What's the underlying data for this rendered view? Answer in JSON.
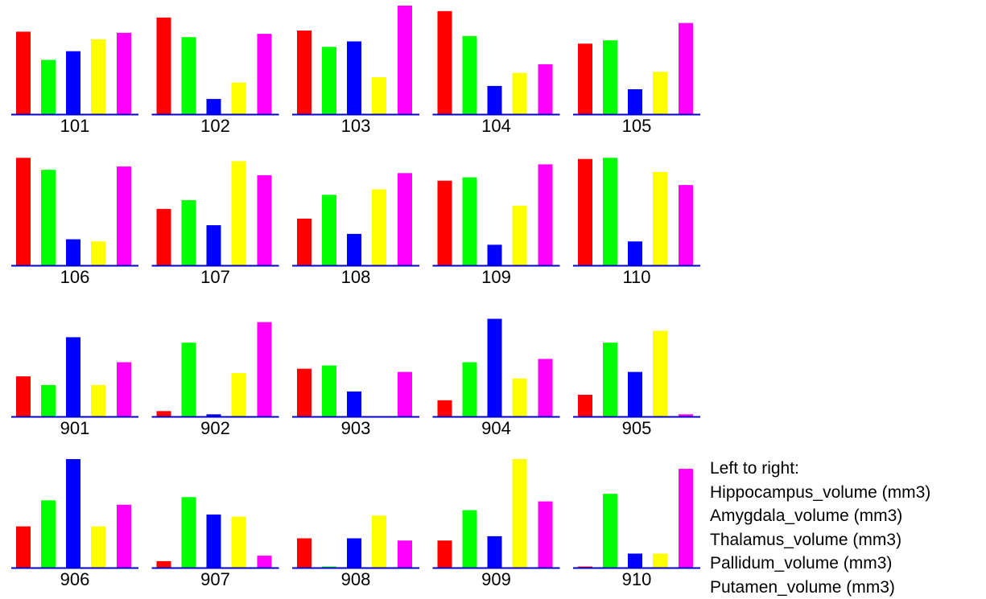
{
  "legend": {
    "heading": "Left to right:",
    "items": [
      "Hippocampus_volume (mm3)",
      "Amygdala_volume (mm3)",
      "Thalamus_volume (mm3)",
      "Pallidum_volume (mm3)",
      "Putamen_volume (mm3)"
    ]
  },
  "colors": {
    "series": [
      "#ff0000",
      "#00ff00",
      "#0000ff",
      "#ffff00",
      "#ff00ff"
    ],
    "baseline": "#0000cc"
  },
  "chart_data": {
    "type": "bar",
    "layout": "small-multiples grid, 4 rows x 5 columns, one panel per subject",
    "value_scale": "relative (no axis printed; values are bar heights normalized 0-1 within each panel)",
    "series_names": [
      "Hippocampus_volume (mm3)",
      "Amygdala_volume (mm3)",
      "Thalamus_volume (mm3)",
      "Pallidum_volume (mm3)",
      "Putamen_volume (mm3)"
    ],
    "panels": [
      {
        "label": "101",
        "values": [
          0.76,
          0.5,
          0.58,
          0.69,
          0.75
        ]
      },
      {
        "label": "102",
        "values": [
          0.89,
          0.71,
          0.14,
          0.29,
          0.74
        ]
      },
      {
        "label": "103",
        "values": [
          0.77,
          0.62,
          0.67,
          0.34,
          1.0
        ]
      },
      {
        "label": "104",
        "values": [
          0.95,
          0.72,
          0.26,
          0.38,
          0.46
        ]
      },
      {
        "label": "105",
        "values": [
          0.65,
          0.68,
          0.23,
          0.39,
          0.84
        ]
      },
      {
        "label": "106",
        "values": [
          0.99,
          0.88,
          0.24,
          0.22,
          0.91
        ]
      },
      {
        "label": "107",
        "values": [
          0.52,
          0.6,
          0.37,
          0.96,
          0.83
        ]
      },
      {
        "label": "108",
        "values": [
          0.43,
          0.65,
          0.29,
          0.7,
          0.85
        ]
      },
      {
        "label": "109",
        "values": [
          0.78,
          0.81,
          0.19,
          0.55,
          0.93
        ]
      },
      {
        "label": "110",
        "values": [
          0.98,
          0.99,
          0.22,
          0.86,
          0.74
        ]
      },
      {
        "label": "901",
        "values": [
          0.37,
          0.29,
          0.73,
          0.29,
          0.5
        ]
      },
      {
        "label": "902",
        "values": [
          0.05,
          0.68,
          0.02,
          0.4,
          0.87
        ]
      },
      {
        "label": "903",
        "values": [
          0.44,
          0.47,
          0.23,
          0.0,
          0.41
        ]
      },
      {
        "label": "904",
        "values": [
          0.15,
          0.5,
          0.9,
          0.35,
          0.53
        ]
      },
      {
        "label": "905",
        "values": [
          0.2,
          0.68,
          0.41,
          0.79,
          0.02
        ]
      },
      {
        "label": "906",
        "values": [
          0.38,
          0.62,
          1.0,
          0.38,
          0.58
        ]
      },
      {
        "label": "907",
        "values": [
          0.06,
          0.65,
          0.49,
          0.47,
          0.11
        ]
      },
      {
        "label": "908",
        "values": [
          0.27,
          0.01,
          0.27,
          0.48,
          0.25
        ]
      },
      {
        "label": "909",
        "values": [
          0.25,
          0.53,
          0.29,
          1.0,
          0.61
        ]
      },
      {
        "label": "910",
        "values": [
          0.01,
          0.68,
          0.13,
          0.13,
          0.91
        ]
      }
    ]
  }
}
